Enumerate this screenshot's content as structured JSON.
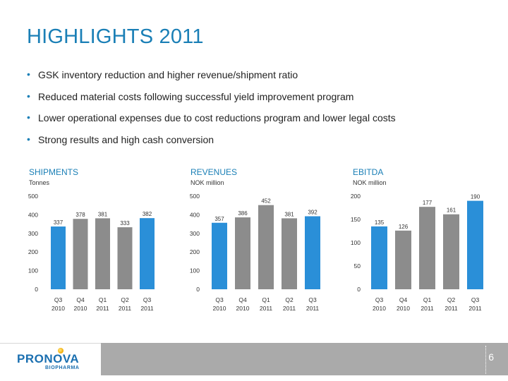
{
  "slide": {
    "title": "HIGHLIGHTS 2011",
    "bullets": [
      "GSK inventory reduction and higher revenue/shipment ratio",
      "Reduced material costs following successful yield improvement program",
      "Lower operational expenses due to cost reductions program and lower legal costs",
      "Strong results and high cash conversion"
    ],
    "page_number": "6",
    "logo": {
      "name": "PRONOVA",
      "sub": "BIOPHARMA"
    },
    "colors": {
      "title": "#1a7fb6",
      "bar_gray": "#8c8c8c",
      "bar_blue": "#2a8fd8",
      "footer": "#aaaaaa"
    }
  },
  "chart_data": [
    {
      "type": "bar",
      "title": "SHIPMENTS",
      "subtitle": "Tonnes",
      "categories": [
        [
          "Q3",
          "2010"
        ],
        [
          "Q4",
          "2010"
        ],
        [
          "Q1",
          "2011"
        ],
        [
          "Q2",
          "2011"
        ],
        [
          "Q3",
          "2011"
        ]
      ],
      "values": [
        337,
        378,
        381,
        333,
        382
      ],
      "value_labels": [
        "337",
        "378",
        "381",
        "333",
        "382"
      ],
      "highlight_last": true,
      "ylim": [
        0,
        500
      ],
      "yticks": [
        0,
        100,
        200,
        300,
        400,
        500
      ]
    },
    {
      "type": "bar",
      "title": "REVENUES",
      "subtitle": "NOK million",
      "categories": [
        [
          "Q3",
          "2010"
        ],
        [
          "Q4",
          "2010"
        ],
        [
          "Q1",
          "2011"
        ],
        [
          "Q2",
          "2011"
        ],
        [
          "Q3",
          "2011"
        ]
      ],
      "values": [
        357,
        386,
        452,
        381,
        392
      ],
      "value_labels": [
        "357",
        "386",
        "452",
        "381",
        "392"
      ],
      "highlight_last": true,
      "ylim": [
        0,
        500
      ],
      "yticks": [
        0,
        100,
        200,
        300,
        400,
        500
      ]
    },
    {
      "type": "bar",
      "title": "EBITDA",
      "subtitle": "NOK million",
      "categories": [
        [
          "Q3",
          "2010"
        ],
        [
          "Q4",
          "2010"
        ],
        [
          "Q1",
          "2011"
        ],
        [
          "Q2",
          "2011"
        ],
        [
          "Q3",
          "2011"
        ]
      ],
      "values": [
        135,
        126,
        177,
        161,
        190
      ],
      "value_labels": [
        "135",
        "126",
        "177",
        "161",
        "190"
      ],
      "highlight_last": true,
      "ylim": [
        0,
        200
      ],
      "yticks": [
        0,
        50,
        100,
        150,
        200
      ]
    }
  ]
}
